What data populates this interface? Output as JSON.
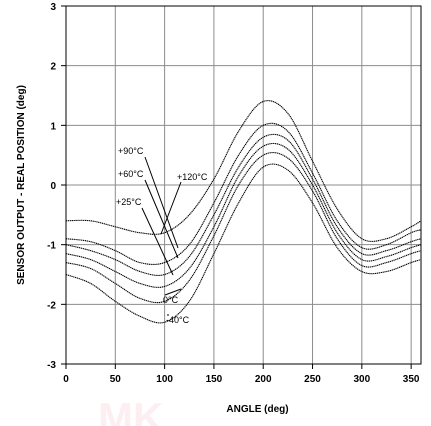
{
  "chart_data": {
    "type": "line",
    "title": "",
    "xlabel": "ANGLE (deg)",
    "ylabel": "SENSOR OUTPUT - REAL POSITION (deg)",
    "xlim": [
      0,
      360
    ],
    "ylim": [
      -3,
      3
    ],
    "xticks": [
      0,
      50,
      100,
      150,
      200,
      250,
      300,
      350
    ],
    "yticks": [
      -3,
      -2,
      -1,
      0,
      1,
      2,
      3
    ],
    "grid": true,
    "legend": "none",
    "series": [
      {
        "name": "+120°C",
        "x": [
          0,
          25,
          50,
          75,
          100,
          125,
          150,
          175,
          200,
          225,
          250,
          275,
          300,
          325,
          350,
          360
        ],
        "y": [
          -0.6,
          -0.6,
          -0.7,
          -0.8,
          -0.8,
          -0.5,
          0.1,
          0.9,
          1.4,
          1.2,
          0.4,
          -0.4,
          -0.9,
          -0.9,
          -0.7,
          -0.6
        ]
      },
      {
        "name": "+90°C",
        "x": [
          0,
          25,
          50,
          75,
          100,
          125,
          150,
          175,
          200,
          225,
          250,
          275,
          300,
          325,
          350,
          360
        ],
        "y": [
          -0.9,
          -0.95,
          -1.1,
          -1.3,
          -1.3,
          -1.0,
          -0.3,
          0.5,
          1.0,
          0.9,
          0.2,
          -0.6,
          -1.05,
          -1.0,
          -0.8,
          -0.75
        ]
      },
      {
        "name": "+60°C",
        "x": [
          0,
          25,
          50,
          75,
          100,
          125,
          150,
          175,
          200,
          225,
          250,
          275,
          300,
          325,
          350,
          360
        ],
        "y": [
          -1.0,
          -1.1,
          -1.25,
          -1.45,
          -1.5,
          -1.2,
          -0.5,
          0.3,
          0.8,
          0.75,
          0.1,
          -0.7,
          -1.15,
          -1.1,
          -0.95,
          -0.9
        ]
      },
      {
        "name": "+25°C",
        "x": [
          0,
          25,
          50,
          75,
          100,
          125,
          150,
          175,
          200,
          225,
          250,
          275,
          300,
          325,
          350,
          360
        ],
        "y": [
          -1.15,
          -1.25,
          -1.45,
          -1.65,
          -1.7,
          -1.4,
          -0.7,
          0.15,
          0.65,
          0.6,
          0.0,
          -0.8,
          -1.25,
          -1.2,
          -1.05,
          -1.0
        ]
      },
      {
        "name": "0°C",
        "x": [
          0,
          25,
          50,
          75,
          100,
          125,
          150,
          175,
          200,
          225,
          250,
          275,
          300,
          325,
          350,
          360
        ],
        "y": [
          -1.3,
          -1.4,
          -1.65,
          -1.9,
          -1.95,
          -1.6,
          -0.85,
          0.0,
          0.5,
          0.45,
          -0.1,
          -0.9,
          -1.35,
          -1.3,
          -1.15,
          -1.1
        ]
      },
      {
        "name": "-40°C",
        "x": [
          0,
          25,
          50,
          75,
          100,
          125,
          150,
          175,
          200,
          225,
          250,
          275,
          300,
          325,
          350,
          360
        ],
        "y": [
          -1.5,
          -1.65,
          -1.95,
          -2.2,
          -2.3,
          -1.95,
          -1.15,
          -0.3,
          0.3,
          0.25,
          -0.3,
          -1.05,
          -1.45,
          -1.45,
          -1.3,
          -1.25
        ]
      }
    ]
  },
  "watermark": "MK"
}
